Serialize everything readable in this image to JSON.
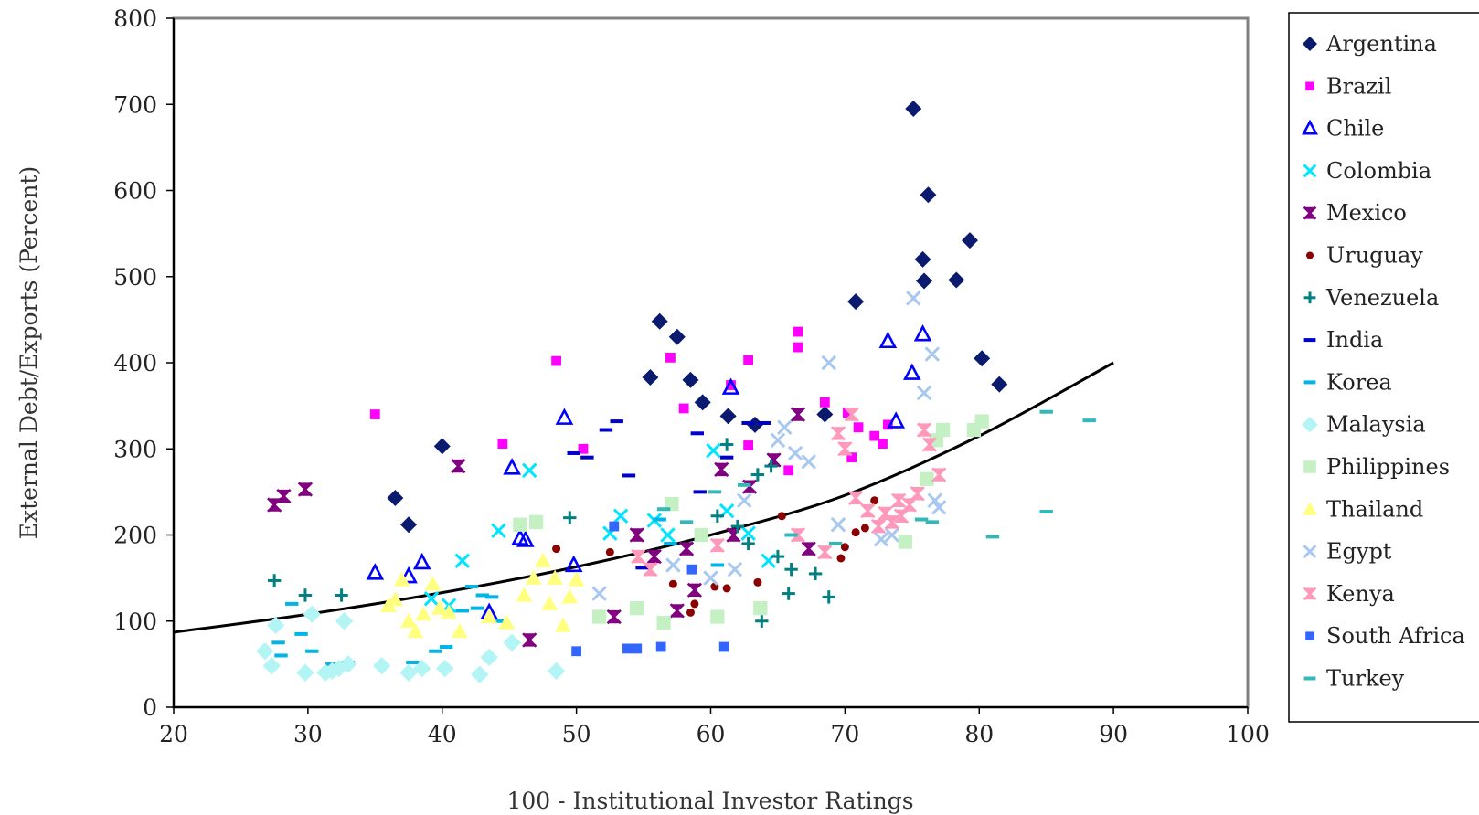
{
  "chart_data": {
    "type": "scatter",
    "xlabel": "100 - Institutional Investor Ratings",
    "ylabel": "External Debt/Exports (Percent)",
    "xlim": [
      20,
      100
    ],
    "ylim": [
      0,
      800
    ],
    "x_ticks": [
      "20",
      "30",
      "40",
      "50",
      "60",
      "70",
      "80",
      "90",
      "100"
    ],
    "y_ticks": [
      "0",
      "100",
      "200",
      "300",
      "400",
      "500",
      "600",
      "700",
      "800"
    ],
    "grid": false,
    "legend_position": "right",
    "trend_line": {
      "x": [
        20,
        30,
        40,
        50,
        60,
        70,
        80,
        90
      ],
      "y": [
        87,
        108,
        133,
        163,
        200,
        246,
        315,
        400
      ]
    },
    "series": [
      {
        "name": "Argentina",
        "marker": "diamond",
        "color": "#0a1a6e",
        "points": [
          [
            36.5,
            243
          ],
          [
            37.5,
            212
          ],
          [
            40,
            303
          ],
          [
            55.5,
            383
          ],
          [
            56.2,
            448
          ],
          [
            57.5,
            430
          ],
          [
            58.5,
            380
          ],
          [
            59.4,
            354
          ],
          [
            61.3,
            338
          ],
          [
            63.3,
            328
          ],
          [
            68.5,
            340
          ],
          [
            70.8,
            471
          ],
          [
            75.1,
            695
          ],
          [
            75.8,
            520
          ],
          [
            75.9,
            495
          ],
          [
            76.2,
            595
          ],
          [
            78.3,
            496
          ],
          [
            79.3,
            542
          ],
          [
            80.2,
            405
          ],
          [
            81.5,
            375
          ]
        ]
      },
      {
        "name": "Brazil",
        "marker": "square",
        "color": "#ff00ff",
        "points": [
          [
            35,
            340
          ],
          [
            44.5,
            306
          ],
          [
            48.5,
            402
          ],
          [
            50.5,
            300
          ],
          [
            57,
            406
          ],
          [
            58,
            347
          ],
          [
            61.5,
            374
          ],
          [
            62.8,
            403
          ],
          [
            62.8,
            304
          ],
          [
            65.8,
            275
          ],
          [
            66.5,
            436
          ],
          [
            66.5,
            418
          ],
          [
            68.5,
            354
          ],
          [
            70.2,
            342
          ],
          [
            70.5,
            290
          ],
          [
            71,
            325
          ],
          [
            72.2,
            315
          ],
          [
            72.8,
            306
          ],
          [
            73.2,
            328
          ]
        ]
      },
      {
        "name": "Chile",
        "marker": "triangle-open",
        "color": "#0000ff",
        "points": [
          [
            35,
            156
          ],
          [
            37.5,
            152
          ],
          [
            38.5,
            168
          ],
          [
            43.5,
            110
          ],
          [
            45.2,
            278
          ],
          [
            45.8,
            196
          ],
          [
            46.2,
            194
          ],
          [
            49.1,
            336
          ],
          [
            49.8,
            165
          ],
          [
            61.5,
            371
          ],
          [
            73.2,
            425
          ],
          [
            73.8,
            332
          ],
          [
            75,
            388
          ],
          [
            75.8,
            433
          ]
        ]
      },
      {
        "name": "Colombia",
        "marker": "x",
        "color": "#00e5ff",
        "points": [
          [
            39.2,
            126
          ],
          [
            40.5,
            118
          ],
          [
            41.5,
            170
          ],
          [
            44.2,
            205
          ],
          [
            46.5,
            275
          ],
          [
            52.5,
            202
          ],
          [
            53.3,
            222
          ],
          [
            55.8,
            217
          ],
          [
            56.8,
            200
          ],
          [
            60.2,
            298
          ],
          [
            61.2,
            228
          ],
          [
            62.8,
            202
          ],
          [
            64.3,
            170
          ]
        ]
      },
      {
        "name": "Mexico",
        "marker": "hourglass",
        "color": "#800080",
        "points": [
          [
            27.5,
            235
          ],
          [
            28.2,
            245
          ],
          [
            29.8,
            253
          ],
          [
            41.2,
            280
          ],
          [
            46.5,
            78
          ],
          [
            52.8,
            105
          ],
          [
            54.5,
            200
          ],
          [
            55.8,
            175
          ],
          [
            57.5,
            112
          ],
          [
            58.2,
            184
          ],
          [
            58.8,
            136
          ],
          [
            60.8,
            276
          ],
          [
            61.7,
            200
          ],
          [
            62.9,
            256
          ],
          [
            64.7,
            287
          ],
          [
            66.5,
            340
          ],
          [
            67.3,
            184
          ]
        ]
      },
      {
        "name": "Uruguay",
        "marker": "dot",
        "color": "#8b0000",
        "points": [
          [
            48.5,
            184
          ],
          [
            52.5,
            180
          ],
          [
            57.2,
            143
          ],
          [
            58.5,
            110
          ],
          [
            58.8,
            120
          ],
          [
            60.3,
            140
          ],
          [
            61.2,
            138
          ],
          [
            63.5,
            145
          ],
          [
            65.3,
            222
          ],
          [
            69.7,
            173
          ],
          [
            70,
            186
          ],
          [
            70.8,
            203
          ],
          [
            71.5,
            208
          ],
          [
            72.2,
            240
          ]
        ]
      },
      {
        "name": "Venezuela",
        "marker": "plus",
        "color": "#008080",
        "points": [
          [
            27.5,
            147
          ],
          [
            29.8,
            130
          ],
          [
            32.5,
            130
          ],
          [
            49.5,
            220
          ],
          [
            60.5,
            222
          ],
          [
            61.2,
            305
          ],
          [
            62,
            210
          ],
          [
            62.8,
            190
          ],
          [
            63.8,
            100
          ],
          [
            63.5,
            270
          ],
          [
            64.5,
            280
          ],
          [
            65,
            175
          ],
          [
            65.8,
            132
          ],
          [
            66,
            160
          ],
          [
            67.8,
            155
          ],
          [
            68.8,
            128
          ]
        ]
      },
      {
        "name": "India",
        "marker": "dash",
        "color": "#0000cc",
        "points": [
          [
            49.8,
            295
          ],
          [
            50.8,
            290
          ],
          [
            52.2,
            322
          ],
          [
            53,
            332
          ],
          [
            53.9,
            269
          ],
          [
            54.9,
            162
          ],
          [
            59,
            318
          ],
          [
            59.2,
            250
          ],
          [
            61.2,
            290
          ],
          [
            62.8,
            330
          ],
          [
            64,
            330
          ]
        ]
      },
      {
        "name": "Korea",
        "marker": "dash",
        "color": "#00b4e6",
        "points": [
          [
            27.8,
            75
          ],
          [
            28,
            60
          ],
          [
            28.8,
            120
          ],
          [
            29.5,
            85
          ],
          [
            30.3,
            65
          ],
          [
            31.8,
            50
          ],
          [
            33,
            52
          ],
          [
            37.8,
            52
          ],
          [
            39.5,
            65
          ],
          [
            40.3,
            70
          ],
          [
            41.5,
            112
          ],
          [
            42.2,
            140
          ],
          [
            42.6,
            115
          ],
          [
            43,
            130
          ],
          [
            43.7,
            128
          ],
          [
            44.2,
            100
          ],
          [
            56.2,
            218
          ],
          [
            57,
            190
          ],
          [
            60.5,
            165
          ]
        ]
      },
      {
        "name": "Malaysia",
        "marker": "diamond-open",
        "color": "#b3f5f5",
        "points": [
          [
            26.8,
            65
          ],
          [
            27.3,
            48
          ],
          [
            27.6,
            95
          ],
          [
            29.8,
            40
          ],
          [
            30.3,
            108
          ],
          [
            31.3,
            40
          ],
          [
            31.8,
            42
          ],
          [
            32.3,
            45
          ],
          [
            32.7,
            100
          ],
          [
            33,
            50
          ],
          [
            35.5,
            48
          ],
          [
            37.5,
            40
          ],
          [
            38.5,
            45
          ],
          [
            40.2,
            45
          ],
          [
            42.8,
            38
          ],
          [
            43.5,
            58
          ],
          [
            45.2,
            75
          ],
          [
            48.5,
            42
          ]
        ]
      },
      {
        "name": "Philippines",
        "marker": "square-open",
        "color": "#c4f0c4",
        "points": [
          [
            45.8,
            212
          ],
          [
            47,
            215
          ],
          [
            51.7,
            105
          ],
          [
            54.5,
            115
          ],
          [
            56.5,
            98
          ],
          [
            57.1,
            236
          ],
          [
            59.3,
            200
          ],
          [
            60.5,
            105
          ],
          [
            63.7,
            115
          ],
          [
            74.5,
            192
          ],
          [
            76.1,
            265
          ],
          [
            76.8,
            310
          ],
          [
            77.3,
            322
          ],
          [
            79.6,
            322
          ],
          [
            80.2,
            332
          ]
        ]
      },
      {
        "name": "Thailand",
        "marker": "triangle",
        "color": "#ffff80",
        "points": [
          [
            36,
            118
          ],
          [
            36.5,
            125
          ],
          [
            37,
            148
          ],
          [
            37.5,
            100
          ],
          [
            38,
            88
          ],
          [
            38.6,
            108
          ],
          [
            39.3,
            143
          ],
          [
            39.8,
            115
          ],
          [
            40.5,
            110
          ],
          [
            41.3,
            88
          ],
          [
            43.5,
            105
          ],
          [
            44.8,
            98
          ],
          [
            46.1,
            130
          ],
          [
            46.8,
            150
          ],
          [
            47.5,
            170
          ],
          [
            48,
            120
          ],
          [
            48.4,
            150
          ],
          [
            49,
            95
          ],
          [
            49.5,
            128
          ],
          [
            50,
            148
          ]
        ]
      },
      {
        "name": "Egypt",
        "marker": "x",
        "color": "#a8c8f0",
        "points": [
          [
            51.7,
            132
          ],
          [
            57.2,
            165
          ],
          [
            60,
            150
          ],
          [
            61.8,
            160
          ],
          [
            62.5,
            240
          ],
          [
            65,
            310
          ],
          [
            65.5,
            325
          ],
          [
            66.3,
            295
          ],
          [
            67.3,
            285
          ],
          [
            68.8,
            400
          ],
          [
            69.5,
            212
          ],
          [
            72.7,
            195
          ],
          [
            73.5,
            200
          ],
          [
            75.1,
            475
          ],
          [
            75.9,
            365
          ],
          [
            76.5,
            410
          ],
          [
            76.7,
            240
          ],
          [
            77,
            232
          ]
        ]
      },
      {
        "name": "Kenya",
        "marker": "hourglass",
        "color": "#ff99bb",
        "points": [
          [
            54.6,
            175
          ],
          [
            55.5,
            160
          ],
          [
            60.5,
            188
          ],
          [
            66.5,
            200
          ],
          [
            68.5,
            180
          ],
          [
            69.5,
            318
          ],
          [
            70,
            300
          ],
          [
            70.5,
            340
          ],
          [
            70.8,
            243
          ],
          [
            71.7,
            228
          ],
          [
            72.5,
            210
          ],
          [
            73,
            225
          ],
          [
            73.5,
            215
          ],
          [
            74,
            240
          ],
          [
            74.2,
            222
          ],
          [
            74.8,
            235
          ],
          [
            75.4,
            248
          ],
          [
            75.9,
            322
          ],
          [
            76.3,
            305
          ],
          [
            77,
            270
          ]
        ]
      },
      {
        "name": "South Africa",
        "marker": "square",
        "color": "#3366ff",
        "points": [
          [
            50,
            65
          ],
          [
            53.8,
            68
          ],
          [
            54.5,
            68
          ],
          [
            56.3,
            70
          ],
          [
            58.6,
            160
          ],
          [
            61,
            70
          ],
          [
            52.8,
            210
          ]
        ]
      },
      {
        "name": "Turkey",
        "marker": "dash",
        "color": "#33b8b8",
        "points": [
          [
            56.5,
            230
          ],
          [
            58.2,
            215
          ],
          [
            60.3,
            250
          ],
          [
            62.5,
            258
          ],
          [
            66,
            200
          ],
          [
            69.3,
            190
          ],
          [
            75.7,
            218
          ],
          [
            76.5,
            215
          ],
          [
            81,
            198
          ],
          [
            85,
            343
          ],
          [
            85,
            227
          ],
          [
            88.2,
            333
          ]
        ]
      }
    ]
  }
}
